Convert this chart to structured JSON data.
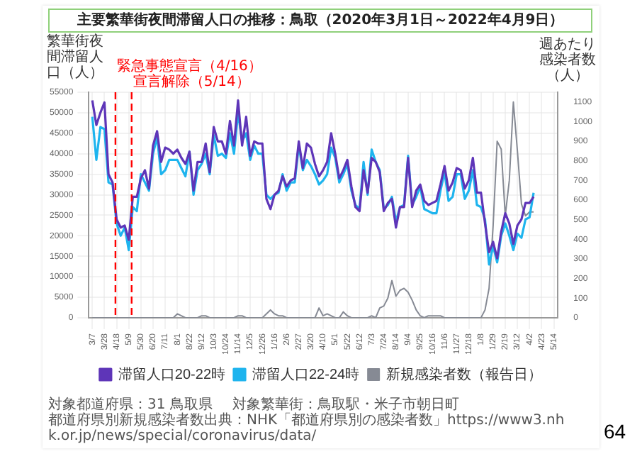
{
  "chart_data": {
    "type": "line",
    "title": "主要繁華街夜間滞留人口の推移：鳥取（2020年3月1日～2022年4月9日）",
    "ylabel": "繁華街夜間滞留人口（人）",
    "y2label": "週あたり感染者数（人）",
    "x": [
      "2020-03-07",
      "2020-03-14",
      "2020-03-21",
      "2020-03-28",
      "2020-04-04",
      "2020-04-11",
      "2020-04-18",
      "2020-04-25",
      "2020-05-02",
      "2020-05-09",
      "2020-05-16",
      "2020-05-23",
      "2020-05-30",
      "2020-06-06",
      "2020-06-13",
      "2020-06-20",
      "2020-06-27",
      "2020-07-04",
      "2020-07-11",
      "2020-07-18",
      "2020-07-25",
      "2020-08-01",
      "2020-08-08",
      "2020-08-15",
      "2020-08-22",
      "2020-08-29",
      "2020-09-05",
      "2020-09-12",
      "2020-09-19",
      "2020-09-26",
      "2020-10-03",
      "2020-10-10",
      "2020-10-17",
      "2020-10-24",
      "2020-10-31",
      "2020-11-07",
      "2020-11-14",
      "2020-11-21",
      "2020-11-28",
      "2020-12-05",
      "2020-12-12",
      "2020-12-19",
      "2020-12-26",
      "2021-01-02",
      "2021-01-09",
      "2021-01-16",
      "2021-01-23",
      "2021-01-30",
      "2021-02-06",
      "2021-02-13",
      "2021-02-20",
      "2021-02-27",
      "2021-03-06",
      "2021-03-13",
      "2021-03-20",
      "2021-03-27",
      "2021-04-03",
      "2021-04-10",
      "2021-04-17",
      "2021-04-24",
      "2021-05-01",
      "2021-05-08",
      "2021-05-15",
      "2021-05-22",
      "2021-05-29",
      "2021-06-05",
      "2021-06-12",
      "2021-06-19",
      "2021-06-26",
      "2021-07-03",
      "2021-07-10",
      "2021-07-17",
      "2021-07-24",
      "2021-07-31",
      "2021-08-07",
      "2021-08-14",
      "2021-08-21",
      "2021-08-28",
      "2021-09-04",
      "2021-09-11",
      "2021-09-18",
      "2021-09-25",
      "2021-10-02",
      "2021-10-09",
      "2021-10-16",
      "2021-10-23",
      "2021-10-30",
      "2021-11-06",
      "2021-11-13",
      "2021-11-20",
      "2021-11-27",
      "2021-12-04",
      "2021-12-11",
      "2021-12-18",
      "2021-12-25",
      "2022-01-01",
      "2022-01-08",
      "2022-01-15",
      "2022-01-22",
      "2022-01-29",
      "2022-02-05",
      "2022-02-12",
      "2022-02-19",
      "2022-02-26",
      "2022-03-05",
      "2022-03-12",
      "2022-03-19",
      "2022-03-26",
      "2022-04-02",
      "2022-04-09"
    ],
    "series": [
      {
        "name": "滞留人口20-22時",
        "color": "#5e35b8",
        "values": [
          53000,
          47000,
          50000,
          52500,
          35000,
          33000,
          24000,
          22000,
          22500,
          19000,
          29500,
          29500,
          34000,
          36000,
          31500,
          42000,
          45500,
          38000,
          41500,
          41000,
          40000,
          41000,
          39000,
          37500,
          40500,
          31000,
          38000,
          38000,
          42500,
          35500,
          46500,
          43000,
          43000,
          40000,
          48000,
          42000,
          53000,
          42000,
          49000,
          39500,
          43000,
          42500,
          42500,
          29000,
          26500,
          30000,
          31000,
          34500,
          32000,
          33500,
          34000,
          43000,
          36500,
          42500,
          41500,
          37500,
          34500,
          36000,
          38000,
          45000,
          40000,
          34000,
          36000,
          38500,
          32000,
          27000,
          26000,
          36000,
          30500,
          39000,
          38000,
          35500,
          26000,
          28000,
          29000,
          22000,
          27000,
          27000,
          39000,
          27000,
          31000,
          32500,
          28500,
          27500,
          28000,
          28500,
          32500,
          37000,
          31000,
          33000,
          36500,
          36000,
          31500,
          33500,
          39000,
          30500,
          30500,
          23000,
          16000,
          18500,
          14500,
          21000,
          25500,
          23000,
          18000,
          22500,
          24000,
          28000,
          28000,
          29500
        ]
      },
      {
        "name": "滞留人口22-24時",
        "color": "#1eb4ee",
        "values": [
          49000,
          38500,
          46500,
          46000,
          33000,
          32500,
          23000,
          20000,
          22000,
          16500,
          27000,
          26000,
          35000,
          33000,
          31000,
          40000,
          44000,
          35000,
          36000,
          38500,
          38500,
          38500,
          36500,
          34500,
          40500,
          30000,
          36000,
          37500,
          40000,
          35000,
          44500,
          39500,
          40000,
          39000,
          45000,
          40000,
          50000,
          43000,
          45000,
          38500,
          42000,
          40000,
          40000,
          30000,
          29000,
          30000,
          30500,
          35000,
          31000,
          33000,
          33000,
          42000,
          36000,
          38500,
          37000,
          35000,
          32500,
          33500,
          35000,
          41500,
          39000,
          33000,
          35000,
          37500,
          31000,
          27500,
          26500,
          38000,
          30000,
          41000,
          38000,
          36000,
          26500,
          27500,
          29500,
          23500,
          27000,
          27500,
          39500,
          27500,
          29500,
          32000,
          26500,
          26000,
          25500,
          25500,
          31000,
          35500,
          28500,
          29500,
          35000,
          35000,
          29000,
          31000,
          36000,
          27500,
          27000,
          24000,
          13000,
          17500,
          13500,
          20000,
          23000,
          20000,
          16500,
          20500,
          19500,
          24000,
          24500,
          30500
        ]
      },
      {
        "name": "新規感染者数（報告日）",
        "color": "#868a94",
        "axis": "y2",
        "values": [
          0,
          0,
          0,
          0,
          0,
          0,
          0,
          0,
          0,
          0,
          0,
          0,
          0,
          0,
          0,
          0,
          0,
          0,
          0,
          0,
          0,
          20,
          10,
          0,
          0,
          0,
          0,
          10,
          10,
          0,
          0,
          0,
          0,
          0,
          0,
          0,
          10,
          10,
          0,
          0,
          0,
          0,
          0,
          20,
          40,
          20,
          10,
          10,
          0,
          0,
          0,
          0,
          0,
          0,
          0,
          0,
          50,
          10,
          20,
          10,
          0,
          0,
          30,
          10,
          0,
          0,
          0,
          0,
          0,
          10,
          0,
          50,
          60,
          100,
          190,
          110,
          140,
          150,
          130,
          90,
          40,
          10,
          0,
          10,
          10,
          10,
          10,
          0,
          0,
          0,
          0,
          0,
          0,
          0,
          0,
          0,
          0,
          40,
          150,
          470,
          900,
          860,
          520,
          700,
          1100,
          850,
          580,
          520,
          540,
          540
        ]
      }
    ],
    "xlim": [
      "2020-03-01",
      "2022-05-21"
    ],
    "xticks": [
      {
        "value": "2020-03-07",
        "label": "3/7"
      },
      {
        "value": "2020-03-28",
        "label": "3/28"
      },
      {
        "value": "2020-04-18",
        "label": "4/18"
      },
      {
        "value": "2020-05-09",
        "label": "5/9"
      },
      {
        "value": "2020-05-30",
        "label": "5/30"
      },
      {
        "value": "2020-06-20",
        "label": "6/20"
      },
      {
        "value": "2020-07-11",
        "label": "7/11"
      },
      {
        "value": "2020-08-01",
        "label": "8/1"
      },
      {
        "value": "2020-08-22",
        "label": "8/22"
      },
      {
        "value": "2020-09-12",
        "label": "9/12"
      },
      {
        "value": "2020-10-03",
        "label": "10/3"
      },
      {
        "value": "2020-10-24",
        "label": "10/24"
      },
      {
        "value": "2020-11-14",
        "label": "11/14"
      },
      {
        "value": "2020-12-05",
        "label": "12/5"
      },
      {
        "value": "2020-12-26",
        "label": "12/26"
      },
      {
        "value": "2021-01-16",
        "label": "1/16"
      },
      {
        "value": "2021-02-06",
        "label": "2/6"
      },
      {
        "value": "2021-02-27",
        "label": "2/27"
      },
      {
        "value": "2021-03-20",
        "label": "3/20"
      },
      {
        "value": "2021-04-10",
        "label": "4/10"
      },
      {
        "value": "2021-05-01",
        "label": "5/1"
      },
      {
        "value": "2021-05-22",
        "label": "5/22"
      },
      {
        "value": "2021-06-12",
        "label": "6/12"
      },
      {
        "value": "2021-07-03",
        "label": "7/3"
      },
      {
        "value": "2021-07-24",
        "label": "7/24"
      },
      {
        "value": "2021-08-14",
        "label": "8/14"
      },
      {
        "value": "2021-09-04",
        "label": "9/4"
      },
      {
        "value": "2021-09-25",
        "label": "9/25"
      },
      {
        "value": "2021-10-16",
        "label": "10/16"
      },
      {
        "value": "2021-11-06",
        "label": "11/6"
      },
      {
        "value": "2021-11-27",
        "label": "11/27"
      },
      {
        "value": "2021-12-18",
        "label": "12/18"
      },
      {
        "value": "2022-01-08",
        "label": "1/8"
      },
      {
        "value": "2022-01-29",
        "label": "1/29"
      },
      {
        "value": "2022-02-19",
        "label": "2/19"
      },
      {
        "value": "2022-03-12",
        "label": "3/12"
      },
      {
        "value": "2022-04-02",
        "label": "4/2"
      },
      {
        "value": "2022-04-23",
        "label": "4/23"
      },
      {
        "value": "2022-05-14",
        "label": "5/14"
      }
    ],
    "ylim": [
      0,
      55000
    ],
    "yticks": [
      0,
      5000,
      10000,
      15000,
      20000,
      25000,
      30000,
      35000,
      40000,
      45000,
      50000,
      55000
    ],
    "y2lim": [
      0,
      1150
    ],
    "y2ticks": [
      0,
      100,
      200,
      300,
      400,
      500,
      600,
      700,
      800,
      900,
      1000,
      1100
    ],
    "ref_lines": [
      {
        "axis": "x",
        "value": "2020-04-16",
        "label": "緊急事態宣言（4/16）",
        "color": "#ff0000",
        "line_style": "dashed"
      },
      {
        "axis": "x",
        "value": "2020-05-14",
        "label": "宣言解除（5/14）",
        "color": "#ff0000",
        "line_style": "dashed"
      }
    ],
    "annotations": [
      "対象都道府県：31 鳥取県",
      "対象繁華街：鳥取駅・米子市朝日町",
      "都道府県別新規感染者数出典：NHK「都道府県別の感染者数」https://www3.nhk.or.jp/news/special/coronavirus/data/",
      "64"
    ],
    "grid": true,
    "legend": "bottom",
    "marker": "none",
    "line_style": "solid"
  }
}
